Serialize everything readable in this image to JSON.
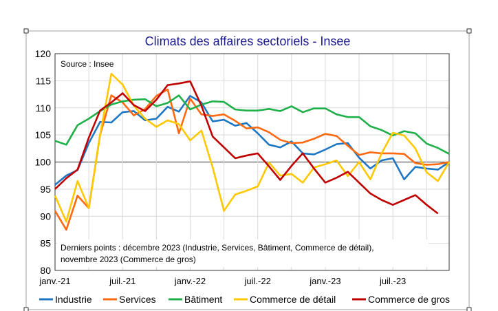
{
  "chart_data": {
    "type": "line",
    "title": "Climats des affaires sectoriels - Insee",
    "source": "Source : Insee",
    "note": [
      "Derniers points : décembre 2023 (Industrie, Services, Bâtiment, Commerce de détail),",
      "novembre 2023 (Commerce de gros)"
    ],
    "x_tick_labels": [
      "janv.-21",
      "juil.-21",
      "janv.-22",
      "juil.-22",
      "janv.-23",
      "juil.-23"
    ],
    "x_range": [
      "2021-01",
      "2023-12"
    ],
    "ylim": [
      80,
      120
    ],
    "y_ticks": [
      80,
      85,
      90,
      95,
      100,
      105,
      110,
      115,
      120
    ],
    "reference_line": 100,
    "grid": true,
    "legend_position": "bottom",
    "series": [
      {
        "name": "Industrie",
        "color": "#1f77c4",
        "values": [
          95.8,
          97.5,
          98.5,
          103.5,
          107.4,
          107.3,
          109.2,
          109.4,
          107.7,
          108,
          110.2,
          109.3,
          112.2,
          111,
          107.5,
          107.8,
          106.7,
          107.2,
          105.3,
          103.2,
          102.7,
          103.8,
          101.6,
          101.4,
          102.3,
          103.3,
          103.5,
          100.8,
          98.8,
          100.3,
          100.7,
          96.8,
          99.1,
          98.8,
          98.6,
          100
        ]
      },
      {
        "name": "Services",
        "color": "#ff6a10",
        "values": [
          91,
          87.5,
          93.8,
          91.5,
          105,
          112.3,
          111,
          108.6,
          109.8,
          112.2,
          113.4,
          105.3,
          111.7,
          108.8,
          108.5,
          108.8,
          107.6,
          106.2,
          106.4,
          105.5,
          104.1,
          103.5,
          103.6,
          104.3,
          105.2,
          104.8,
          103,
          101.3,
          101.8,
          101.6,
          101.6,
          101.5,
          99.8,
          99.5,
          99.6,
          100
        ]
      },
      {
        "name": "Bâtiment",
        "color": "#1fb04a",
        "values": [
          103.9,
          103.2,
          106.8,
          108,
          109.4,
          110.6,
          111.2,
          111.5,
          111.6,
          110.3,
          110.9,
          112.3,
          109.7,
          110.6,
          111.2,
          111.1,
          109.7,
          109.5,
          109.5,
          109.8,
          109.4,
          110.3,
          109.2,
          109.9,
          109.9,
          108.8,
          108.3,
          108.3,
          106.6,
          105.9,
          104.9,
          105.7,
          105.3,
          103.4,
          102.6,
          101.5
        ]
      },
      {
        "name": "Commerce de détail",
        "color": "#ffc800",
        "values": [
          93.8,
          89,
          96.5,
          91.5,
          105,
          116.3,
          114.3,
          110.4,
          108,
          106.5,
          107.7,
          107,
          104,
          105.8,
          99,
          91,
          94,
          94.7,
          95.5,
          99.9,
          97.5,
          97.8,
          96.2,
          99,
          99.6,
          100.3,
          97.4,
          100,
          96.8,
          101.6,
          105.4,
          104.9,
          102.5,
          98.1,
          96.5,
          100
        ]
      },
      {
        "name": "Commerce de gros",
        "color": "#c00000",
        "values": [
          95,
          97,
          98.6,
          104.5,
          109.5,
          111,
          112.7,
          110.5,
          109.4,
          111.5,
          114.2,
          114.5,
          114.9,
          110.4,
          104.7,
          102.7,
          100.7,
          101.2,
          101.6,
          99.2,
          96.7,
          99.3,
          101.6,
          98.8,
          96.2,
          97.1,
          98.2,
          96.2,
          94.2,
          93,
          92.1,
          93,
          93.9,
          92.1,
          90.5
        ]
      }
    ]
  }
}
